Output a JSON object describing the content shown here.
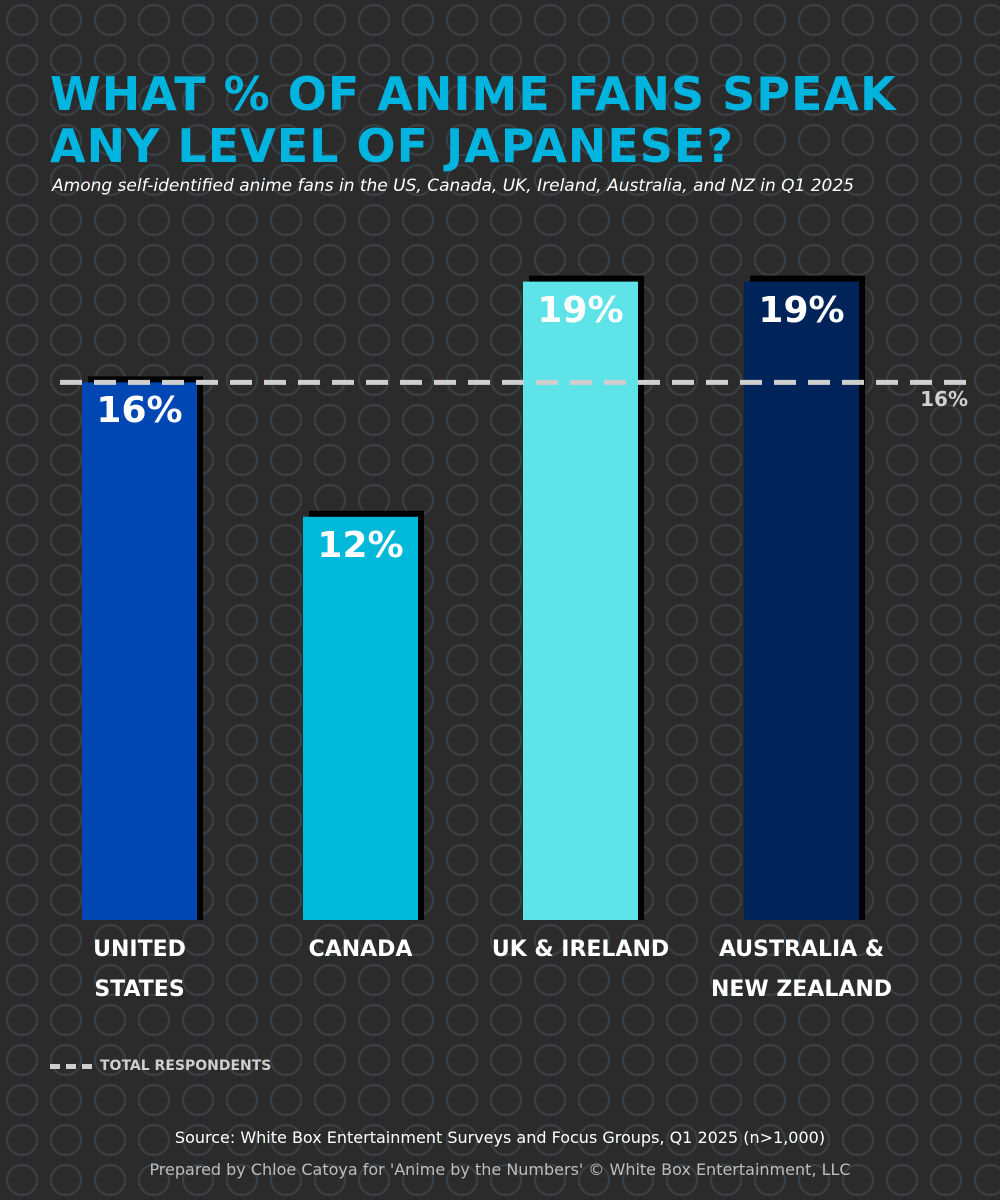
{
  "title": "What % of anime fans speak any level of Japanese?",
  "subtitle": "Among self-identified anime fans in the US, Canada, UK, Ireland, Australia, and NZ in Q1 2025",
  "chart_data": {
    "type": "bar",
    "categories": [
      "UNITED STATES",
      "CANADA",
      "UK & IRELAND",
      "AUSTRALIA & NEW ZEALAND"
    ],
    "values": [
      16,
      12,
      19,
      19
    ],
    "value_labels": [
      "16%",
      "12%",
      "19%",
      "19%"
    ],
    "colors": [
      "#0047b3",
      "#00b8d9",
      "#5ee3e8",
      "#00245a"
    ],
    "ylim": [
      0,
      20
    ],
    "reference_line": {
      "name": "TOTAL RESPONDENTS",
      "value": 16,
      "label": "16%",
      "color": "#cfcfcf"
    }
  },
  "footer": {
    "source": "Source: White Box Entertainment Surveys and Focus Groups, Q1 2025 (n>1,000)",
    "credit": "Prepared by Chloe Catoya for 'Anime by the Numbers' © White Box Entertainment, LLC"
  }
}
